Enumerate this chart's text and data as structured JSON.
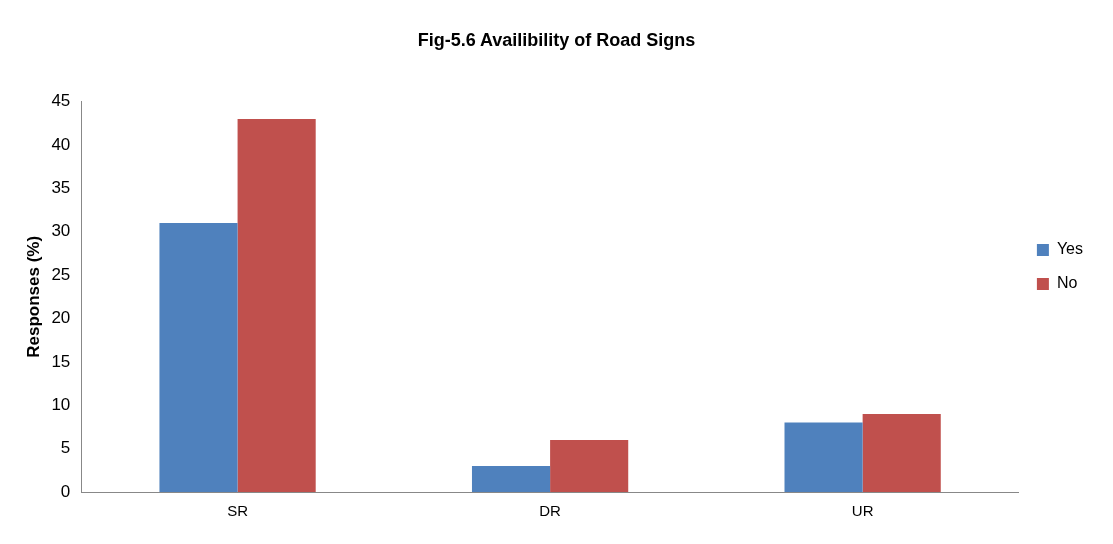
{
  "chart_data": {
    "type": "bar",
    "title": "Fig-5.6 Availibility of Road Signs",
    "ylabel": "Responses (%)",
    "categories": [
      "SR",
      "DR",
      "UR"
    ],
    "series": [
      {
        "name": "Yes",
        "color": "#4f81bd",
        "values": [
          31,
          3,
          8
        ]
      },
      {
        "name": "No",
        "color": "#c0504d",
        "values": [
          43,
          6,
          9
        ]
      }
    ],
    "ylim": [
      0,
      45
    ],
    "yticks": [
      0,
      5,
      10,
      15,
      20,
      25,
      30,
      35,
      40,
      45
    ],
    "grid": false,
    "legend": "right"
  }
}
